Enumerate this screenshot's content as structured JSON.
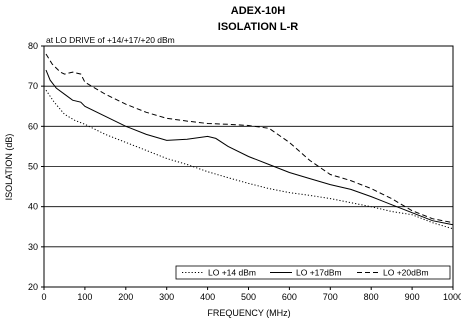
{
  "chart_data": {
    "type": "line",
    "title": "ADEX-10H",
    "subtitle": "ISOLATION L-R",
    "annotation": "at LO DRIVE of +14/+17/+20 dBm",
    "xlabel": "FREQUENCY (MHz)",
    "ylabel": "ISOLATION (dB)",
    "xlim": [
      0,
      1000
    ],
    "ylim": [
      20,
      80
    ],
    "xticks": [
      0,
      100,
      200,
      300,
      400,
      500,
      600,
      700,
      800,
      900,
      1000
    ],
    "yticks": [
      20,
      30,
      40,
      50,
      60,
      70,
      80
    ],
    "grid": "horizontal",
    "legend_position": "bottom-right",
    "series": [
      {
        "name": "LO +14 dBm",
        "style": "dotted",
        "color": "#000000",
        "x": [
          5,
          25,
          50,
          75,
          100,
          150,
          200,
          250,
          300,
          350,
          400,
          450,
          500,
          550,
          600,
          650,
          700,
          750,
          800,
          850,
          900,
          950,
          1000
        ],
        "y": [
          69,
          66,
          63,
          61.5,
          60.5,
          58,
          56,
          54,
          52,
          50.5,
          48.7,
          47.2,
          45.8,
          44.5,
          43.5,
          42.8,
          42,
          41,
          40,
          38.8,
          38,
          36,
          34.5
        ]
      },
      {
        "name": "LO +17dBm",
        "style": "solid",
        "color": "#000000",
        "x": [
          5,
          15,
          30,
          50,
          70,
          90,
          100,
          150,
          200,
          250,
          300,
          350,
          400,
          420,
          450,
          500,
          550,
          600,
          650,
          700,
          750,
          800,
          850,
          900,
          950,
          1000
        ],
        "y": [
          74,
          71.5,
          69.5,
          68,
          66.5,
          66,
          65,
          62.5,
          60,
          58,
          56.5,
          56.8,
          57.5,
          57,
          55,
          52.5,
          50.5,
          48.5,
          47,
          45.5,
          44.3,
          42.5,
          40.5,
          38.5,
          36.5,
          35.5
        ]
      },
      {
        "name": "LO +20dBm",
        "style": "dashed",
        "color": "#000000",
        "x": [
          5,
          20,
          40,
          50,
          70,
          90,
          100,
          150,
          200,
          250,
          300,
          350,
          400,
          450,
          500,
          550,
          600,
          650,
          700,
          750,
          800,
          850,
          900,
          950,
          1000
        ],
        "y": [
          78,
          75.5,
          73.5,
          73,
          73.5,
          73,
          71,
          68,
          65.5,
          63.5,
          62,
          61.3,
          60.7,
          60.5,
          60.2,
          59.5,
          56,
          51.5,
          48,
          46.5,
          44.5,
          42,
          39,
          37,
          36
        ]
      }
    ]
  }
}
